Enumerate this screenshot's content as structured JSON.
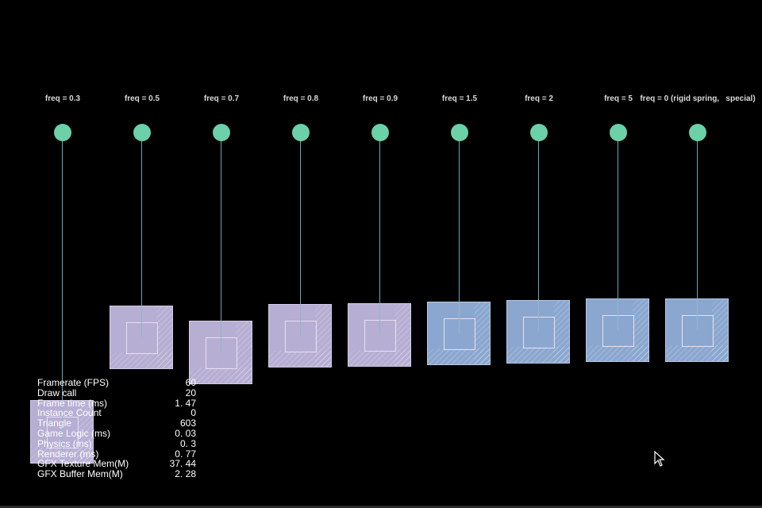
{
  "scene": {
    "labels": [
      "freq = 0.3",
      "freq = 0.5",
      "freq = 0.7",
      "freq = 0.8",
      "freq = 0.9",
      "freq = 1.5",
      "freq = 2",
      "freq = 5",
      "freq = 0 (rigid spring,   special)"
    ],
    "colors": {
      "anchor": "#6cd0a8",
      "rope": "#6aa6b8",
      "box_purple": "#b7aed4",
      "box_blue": "#8ba7cf",
      "background": "#000000"
    }
  },
  "stats": {
    "rows": [
      {
        "label": "Framerate (FPS)",
        "value": "60"
      },
      {
        "label": "Draw call",
        "value": "20"
      },
      {
        "label": "Frame time (ms)",
        "value": "1. 47"
      },
      {
        "label": "Instance Count",
        "value": "0"
      },
      {
        "label": "Triangle",
        "value": "603"
      },
      {
        "label": "Game Logic (ms)",
        "value": "0. 03"
      },
      {
        "label": "Physics (ms)",
        "value": "0. 3"
      },
      {
        "label": "Renderer (ms)",
        "value": "0. 77"
      },
      {
        "label": "GFX Texture Mem(M)",
        "value": "37. 44"
      },
      {
        "label": "GFX Buffer Mem(M)",
        "value": "2. 28"
      }
    ]
  }
}
